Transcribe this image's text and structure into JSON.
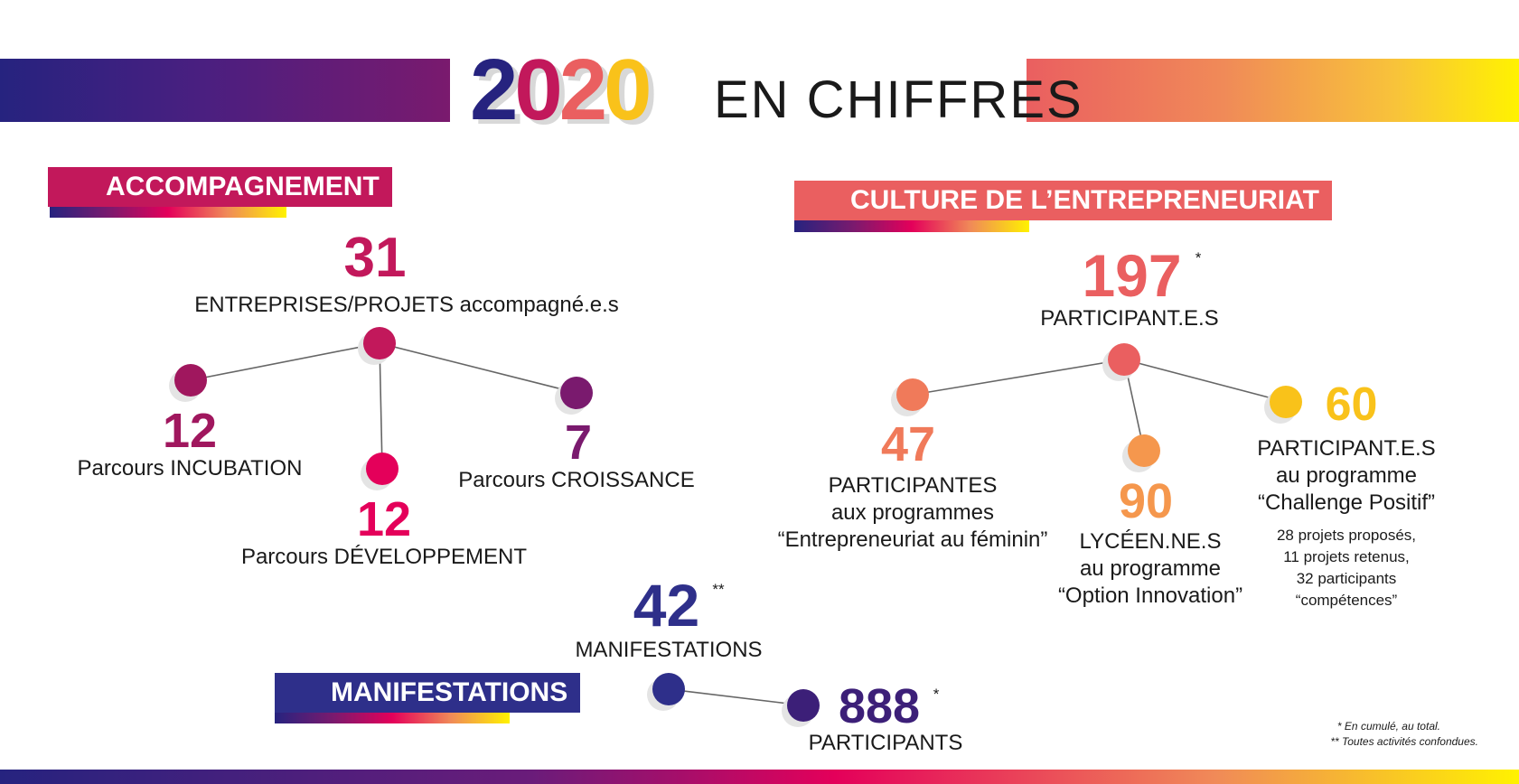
{
  "title": {
    "year_digits": [
      "2",
      "0",
      "2",
      "0"
    ],
    "rest": "EN CHIFFRES"
  },
  "colors": {
    "navy": "#26237f",
    "purple": "#7a1a6e",
    "magenta": "#c2185b",
    "pink": "#e4005a",
    "coral": "#ea5f60",
    "orange": "#f08a58",
    "light_orange": "#f5a04b",
    "yellow": "#f9c21a",
    "indigo": "#4a1f80"
  },
  "accompagnement": {
    "section_label": "ACCOMPAGNEMENT",
    "total": {
      "value": "31",
      "label": "ENTREPRISES/PROJETS accompagné.e.s"
    },
    "branches": [
      {
        "value": "12",
        "label": "Parcours INCUBATION"
      },
      {
        "value": "12",
        "label": "Parcours DÉVELOPPEMENT"
      },
      {
        "value": "7",
        "label": "Parcours CROISSANCE"
      }
    ]
  },
  "culture": {
    "section_label": "CULTURE DE L’ENTREPRENEURIAT",
    "total": {
      "value": "197",
      "mark": "*",
      "label": "PARTICIPANT.E.S"
    },
    "branches": [
      {
        "value": "47",
        "lines": [
          "PARTICIPANTES",
          "aux programmes",
          "“Entrepreneuriat au féminin”"
        ]
      },
      {
        "value": "90",
        "lines": [
          "LYCÉEN.NE.S",
          "au programme",
          "“Option Innovation”"
        ]
      },
      {
        "value": "60",
        "lines": [
          "PARTICIPANT.E.S",
          "au programme",
          "“Challenge Positif”"
        ],
        "details": [
          "28 projets proposés,",
          "11 projets retenus,",
          "32 participants",
          "“compétences”"
        ]
      }
    ]
  },
  "manifestations": {
    "section_label": "MANIFESTATIONS",
    "total": {
      "value": "42",
      "mark": "**",
      "label": "MANIFESTATIONS"
    },
    "participants": {
      "value": "888",
      "mark": "*",
      "label": "PARTICIPANTS"
    }
  },
  "footnotes": [
    "* En cumulé, au total.",
    "** Toutes activités confondues."
  ]
}
